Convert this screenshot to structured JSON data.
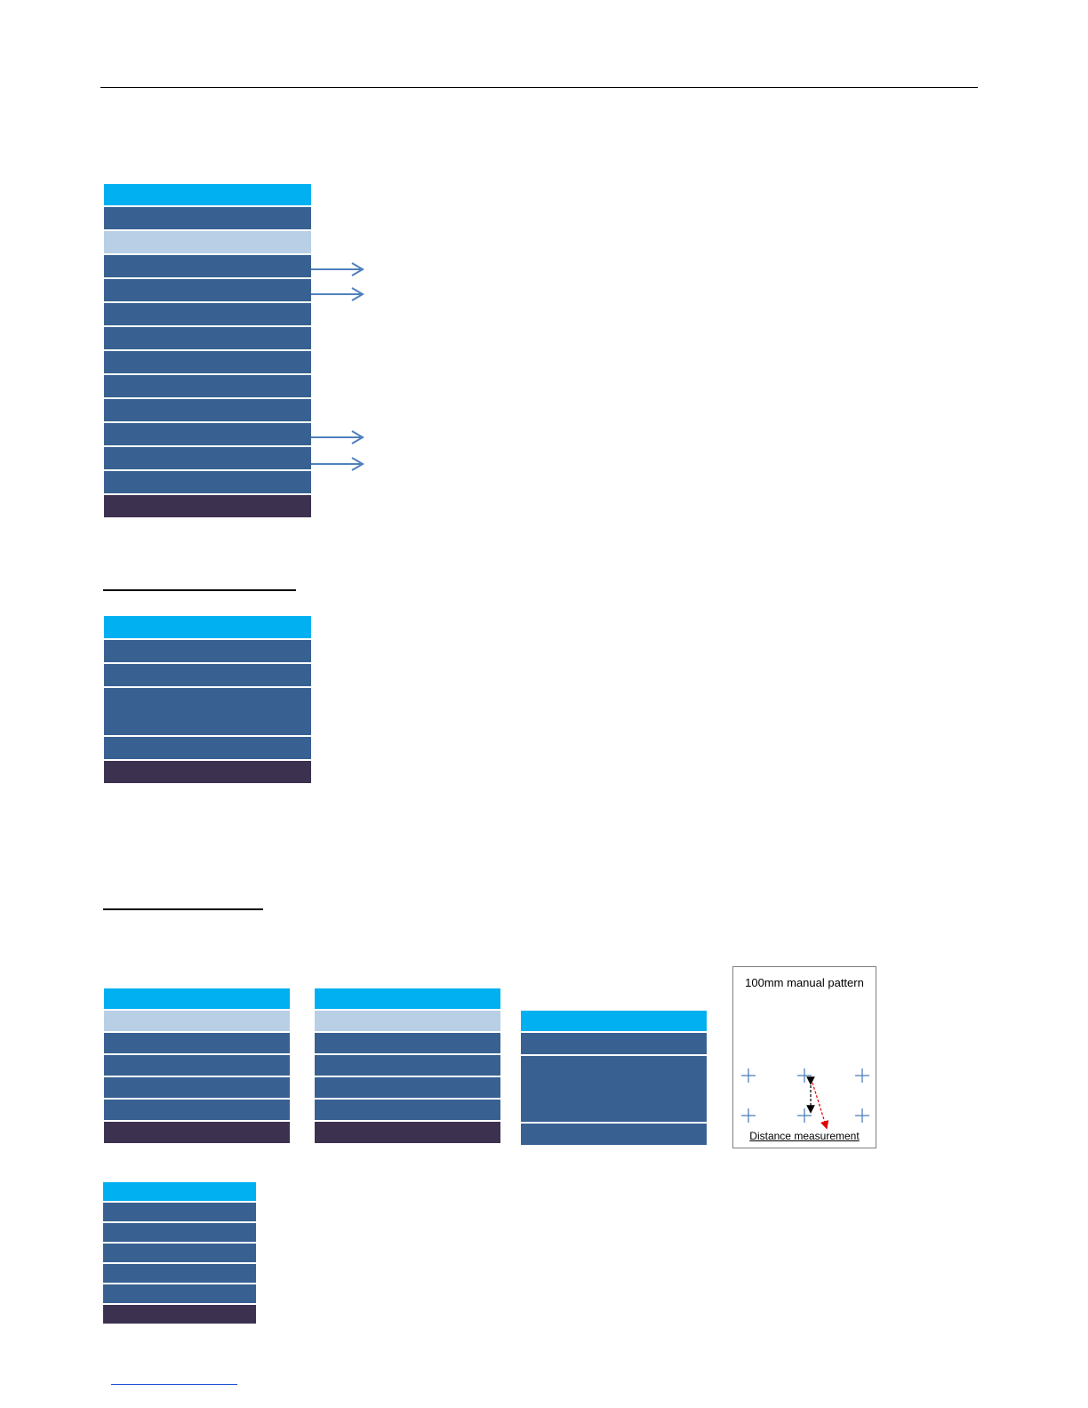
{
  "pattern": {
    "title": "100mm manual pattern",
    "caption": "Distance measurement",
    "cross_color": "#4f81bd",
    "arrow_up_down_color": "#000000",
    "arrow_diag_color": "#e00000"
  },
  "colors": {
    "title_bar": "#00b0f0",
    "item": "#386192",
    "selected": "#b8cfe6",
    "footer": "#3d3150",
    "arrow": "#4f81bd"
  }
}
